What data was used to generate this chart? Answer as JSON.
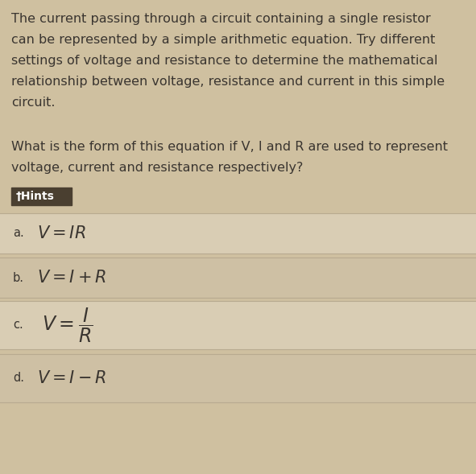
{
  "background_color": "#cfc0a0",
  "text_color": "#3a3530",
  "paragraph1_lines": [
    "The current passing through a circuit containing a single resistor",
    "can be represented by a simple arithmetic equation. Try different",
    "settings of voltage and resistance to determine the mathematical",
    "relationship between voltage, resistance and current in this simple",
    "circuit."
  ],
  "paragraph2_lines": [
    "What is the form of this equation if V, I and R are used to represent",
    "voltage, current and resistance respectively?"
  ],
  "hints_label": "†Hints",
  "hints_bg": "#4a3f30",
  "hints_text_color": "#ffffff",
  "option_bg_a": "#d9cdb4",
  "option_bg_b": "#cec0a4",
  "option_bg_c": "#d9cdb4",
  "option_bg_d": "#cec0a4",
  "option_border": "#b8aa90",
  "label_list": [
    "a.",
    "b.",
    "c.",
    "d."
  ],
  "formula_list": [
    "$V = IR$",
    "$V = I + R$",
    "$V = \\dfrac{I}{R}$",
    "$V = I - R$"
  ],
  "fig_width": 5.91,
  "fig_height": 5.89,
  "dpi": 100
}
